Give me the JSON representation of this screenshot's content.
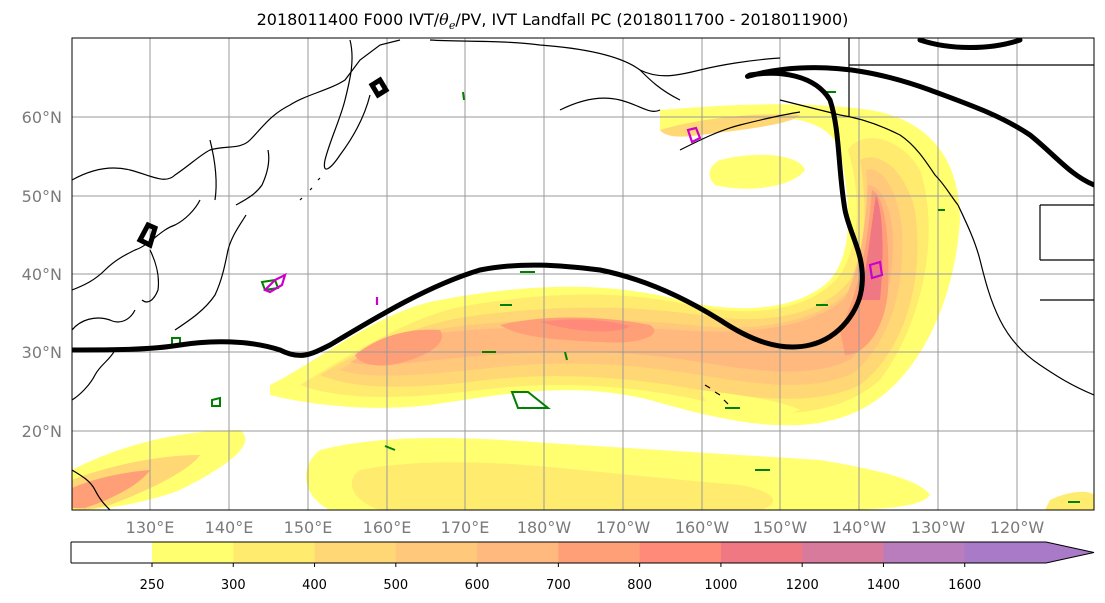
{
  "title_prefix": "2018011400 F000 IVT/",
  "title_theta": "θ",
  "title_sub": "e",
  "title_suffix": "/PV, IVT Landfall PC (2018011700 - 2018011900)",
  "lat_labels": [
    "60°N",
    "50°N",
    "40°N",
    "30°N",
    "20°N"
  ],
  "lon_labels": [
    "130°E",
    "140°E",
    "150°E",
    "160°E",
    "170°E",
    "180°W",
    "170°W",
    "160°W",
    "150°W",
    "140°W",
    "130°W",
    "120°W"
  ],
  "colorbar": {
    "levels": [
      "250",
      "300",
      "400",
      "500",
      "600",
      "700",
      "800",
      "1000",
      "1200",
      "1400",
      "1600"
    ],
    "colors": [
      "#ffff70",
      "#ffec6e",
      "#ffd774",
      "#ffc87a",
      "#ffb97f",
      "#ff9f78",
      "#ff8a7a",
      "#f07882",
      "#d87a9c",
      "#b97cbc",
      "#a87ac8"
    ],
    "extend": "max"
  },
  "legend_colors": {
    "pv_contour": "#008000",
    "theta_e_contour": "#cc00cc",
    "landfall_pc_contour": "#000000"
  }
}
